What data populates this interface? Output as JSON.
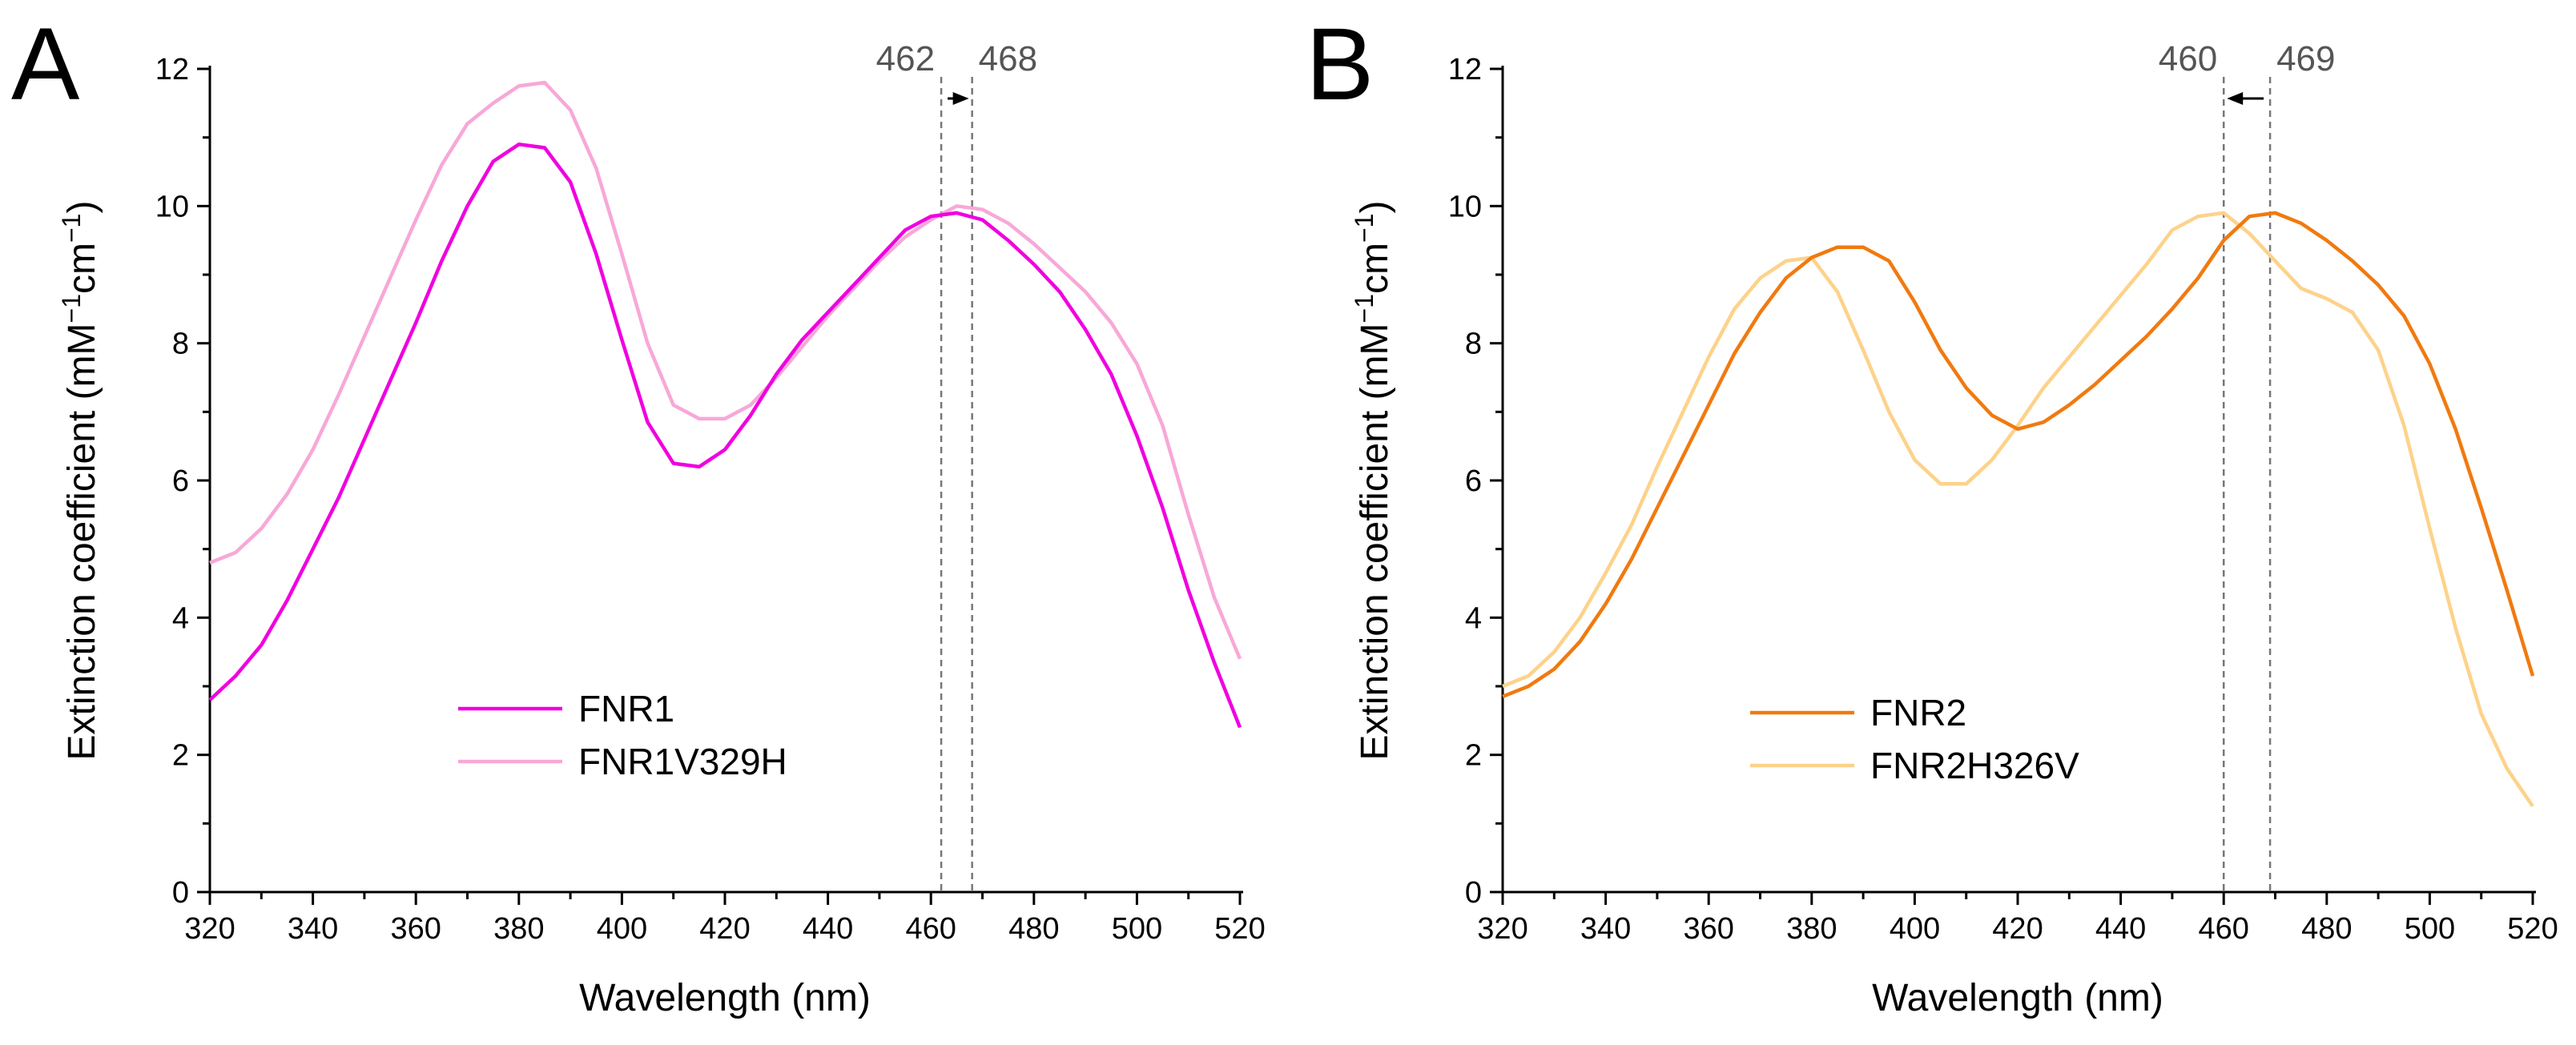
{
  "chart_data": [
    {
      "type": "line",
      "panel": "A",
      "xlabel": "Wavelength (nm)",
      "ylabel_main": "Extinction coefficient (mM",
      "ylabel_sup1": "−1",
      "ylabel_mid": "cm",
      "ylabel_sup2": "−1",
      "ylabel_end": ")",
      "xlim": [
        320,
        520
      ],
      "ylim": [
        0,
        12
      ],
      "xticks": [
        320,
        340,
        360,
        380,
        400,
        420,
        440,
        460,
        480,
        500,
        520
      ],
      "yticks": [
        0,
        2,
        4,
        6,
        8,
        10,
        12
      ],
      "legend_placement": "bottom-left",
      "peak_markers": [
        {
          "value": 462,
          "label": "462"
        },
        {
          "value": 468,
          "label": "468"
        }
      ],
      "shift_arrow": "right",
      "series": [
        {
          "name": "FNR1",
          "color": "#f000e0",
          "x": [
            320,
            325,
            330,
            335,
            340,
            345,
            350,
            355,
            360,
            365,
            370,
            375,
            380,
            385,
            390,
            395,
            400,
            405,
            410,
            415,
            420,
            425,
            430,
            435,
            440,
            445,
            450,
            455,
            460,
            465,
            470,
            475,
            480,
            485,
            490,
            495,
            500,
            505,
            510,
            515,
            520
          ],
          "y": [
            2.8,
            3.15,
            3.6,
            4.25,
            5.0,
            5.75,
            6.6,
            7.45,
            8.3,
            9.2,
            10.0,
            10.65,
            10.9,
            10.85,
            10.35,
            9.3,
            8.05,
            6.85,
            6.25,
            6.2,
            6.45,
            6.95,
            7.55,
            8.05,
            8.45,
            8.85,
            9.25,
            9.65,
            9.85,
            9.9,
            9.8,
            9.5,
            9.15,
            8.75,
            8.2,
            7.55,
            6.65,
            5.6,
            4.4,
            3.35,
            2.4
          ]
        },
        {
          "name": "FNR1V329H",
          "color": "#f7a8d8",
          "x": [
            320,
            325,
            330,
            335,
            340,
            345,
            350,
            355,
            360,
            365,
            370,
            375,
            380,
            385,
            390,
            395,
            400,
            405,
            410,
            415,
            420,
            425,
            430,
            435,
            440,
            445,
            450,
            455,
            460,
            465,
            470,
            475,
            480,
            485,
            490,
            495,
            500,
            505,
            510,
            515,
            520
          ],
          "y": [
            4.8,
            4.95,
            5.3,
            5.8,
            6.45,
            7.25,
            8.1,
            8.95,
            9.8,
            10.6,
            11.2,
            11.5,
            11.75,
            11.8,
            11.4,
            10.55,
            9.3,
            8.0,
            7.1,
            6.9,
            6.9,
            7.1,
            7.5,
            7.95,
            8.4,
            8.8,
            9.2,
            9.55,
            9.8,
            10.0,
            9.95,
            9.75,
            9.45,
            9.1,
            8.75,
            8.3,
            7.7,
            6.8,
            5.5,
            4.3,
            3.4
          ]
        }
      ]
    },
    {
      "type": "line",
      "panel": "B",
      "xlabel": "Wavelength (nm)",
      "ylabel_main": "Extinction coefficient (mM",
      "ylabel_sup1": "−1",
      "ylabel_mid": "cm",
      "ylabel_sup2": "−1",
      "ylabel_end": ")",
      "xlim": [
        320,
        520
      ],
      "ylim": [
        0,
        12
      ],
      "xticks": [
        320,
        340,
        360,
        380,
        400,
        420,
        440,
        460,
        480,
        500,
        520
      ],
      "yticks": [
        0,
        2,
        4,
        6,
        8,
        10,
        12
      ],
      "legend_placement": "bottom-center",
      "peak_markers": [
        {
          "value": 460,
          "label": "460"
        },
        {
          "value": 469,
          "label": "469"
        }
      ],
      "shift_arrow": "left",
      "series": [
        {
          "name": "FNR2",
          "color": "#f07a10",
          "x": [
            320,
            325,
            330,
            335,
            340,
            345,
            350,
            355,
            360,
            365,
            370,
            375,
            380,
            385,
            390,
            395,
            400,
            405,
            410,
            415,
            420,
            425,
            430,
            435,
            440,
            445,
            450,
            455,
            460,
            465,
            470,
            475,
            480,
            485,
            490,
            495,
            500,
            505,
            510,
            515,
            520
          ],
          "y": [
            2.85,
            3.0,
            3.25,
            3.65,
            4.2,
            4.85,
            5.6,
            6.35,
            7.1,
            7.85,
            8.45,
            8.95,
            9.25,
            9.4,
            9.4,
            9.2,
            8.6,
            7.9,
            7.35,
            6.95,
            6.75,
            6.85,
            7.1,
            7.4,
            7.75,
            8.1,
            8.5,
            8.95,
            9.5,
            9.85,
            9.9,
            9.75,
            9.5,
            9.2,
            8.85,
            8.4,
            7.7,
            6.75,
            5.6,
            4.4,
            3.15
          ]
        },
        {
          "name": "FNR2H326V",
          "color": "#fdd28a",
          "x": [
            320,
            325,
            330,
            335,
            340,
            345,
            350,
            355,
            360,
            365,
            370,
            375,
            380,
            385,
            390,
            395,
            400,
            405,
            410,
            415,
            420,
            425,
            430,
            435,
            440,
            445,
            450,
            455,
            460,
            465,
            470,
            475,
            480,
            485,
            490,
            495,
            500,
            505,
            510,
            515,
            520
          ],
          "y": [
            3.0,
            3.15,
            3.5,
            4.0,
            4.65,
            5.35,
            6.2,
            7.0,
            7.8,
            8.5,
            8.95,
            9.2,
            9.25,
            8.75,
            7.9,
            7.0,
            6.3,
            5.95,
            5.95,
            6.3,
            6.8,
            7.35,
            7.8,
            8.25,
            8.7,
            9.15,
            9.65,
            9.85,
            9.9,
            9.6,
            9.2,
            8.8,
            8.65,
            8.45,
            7.9,
            6.8,
            5.3,
            3.85,
            2.6,
            1.8,
            1.25
          ]
        }
      ]
    }
  ],
  "panels": [
    {
      "letter": "A"
    },
    {
      "letter": "B"
    }
  ]
}
